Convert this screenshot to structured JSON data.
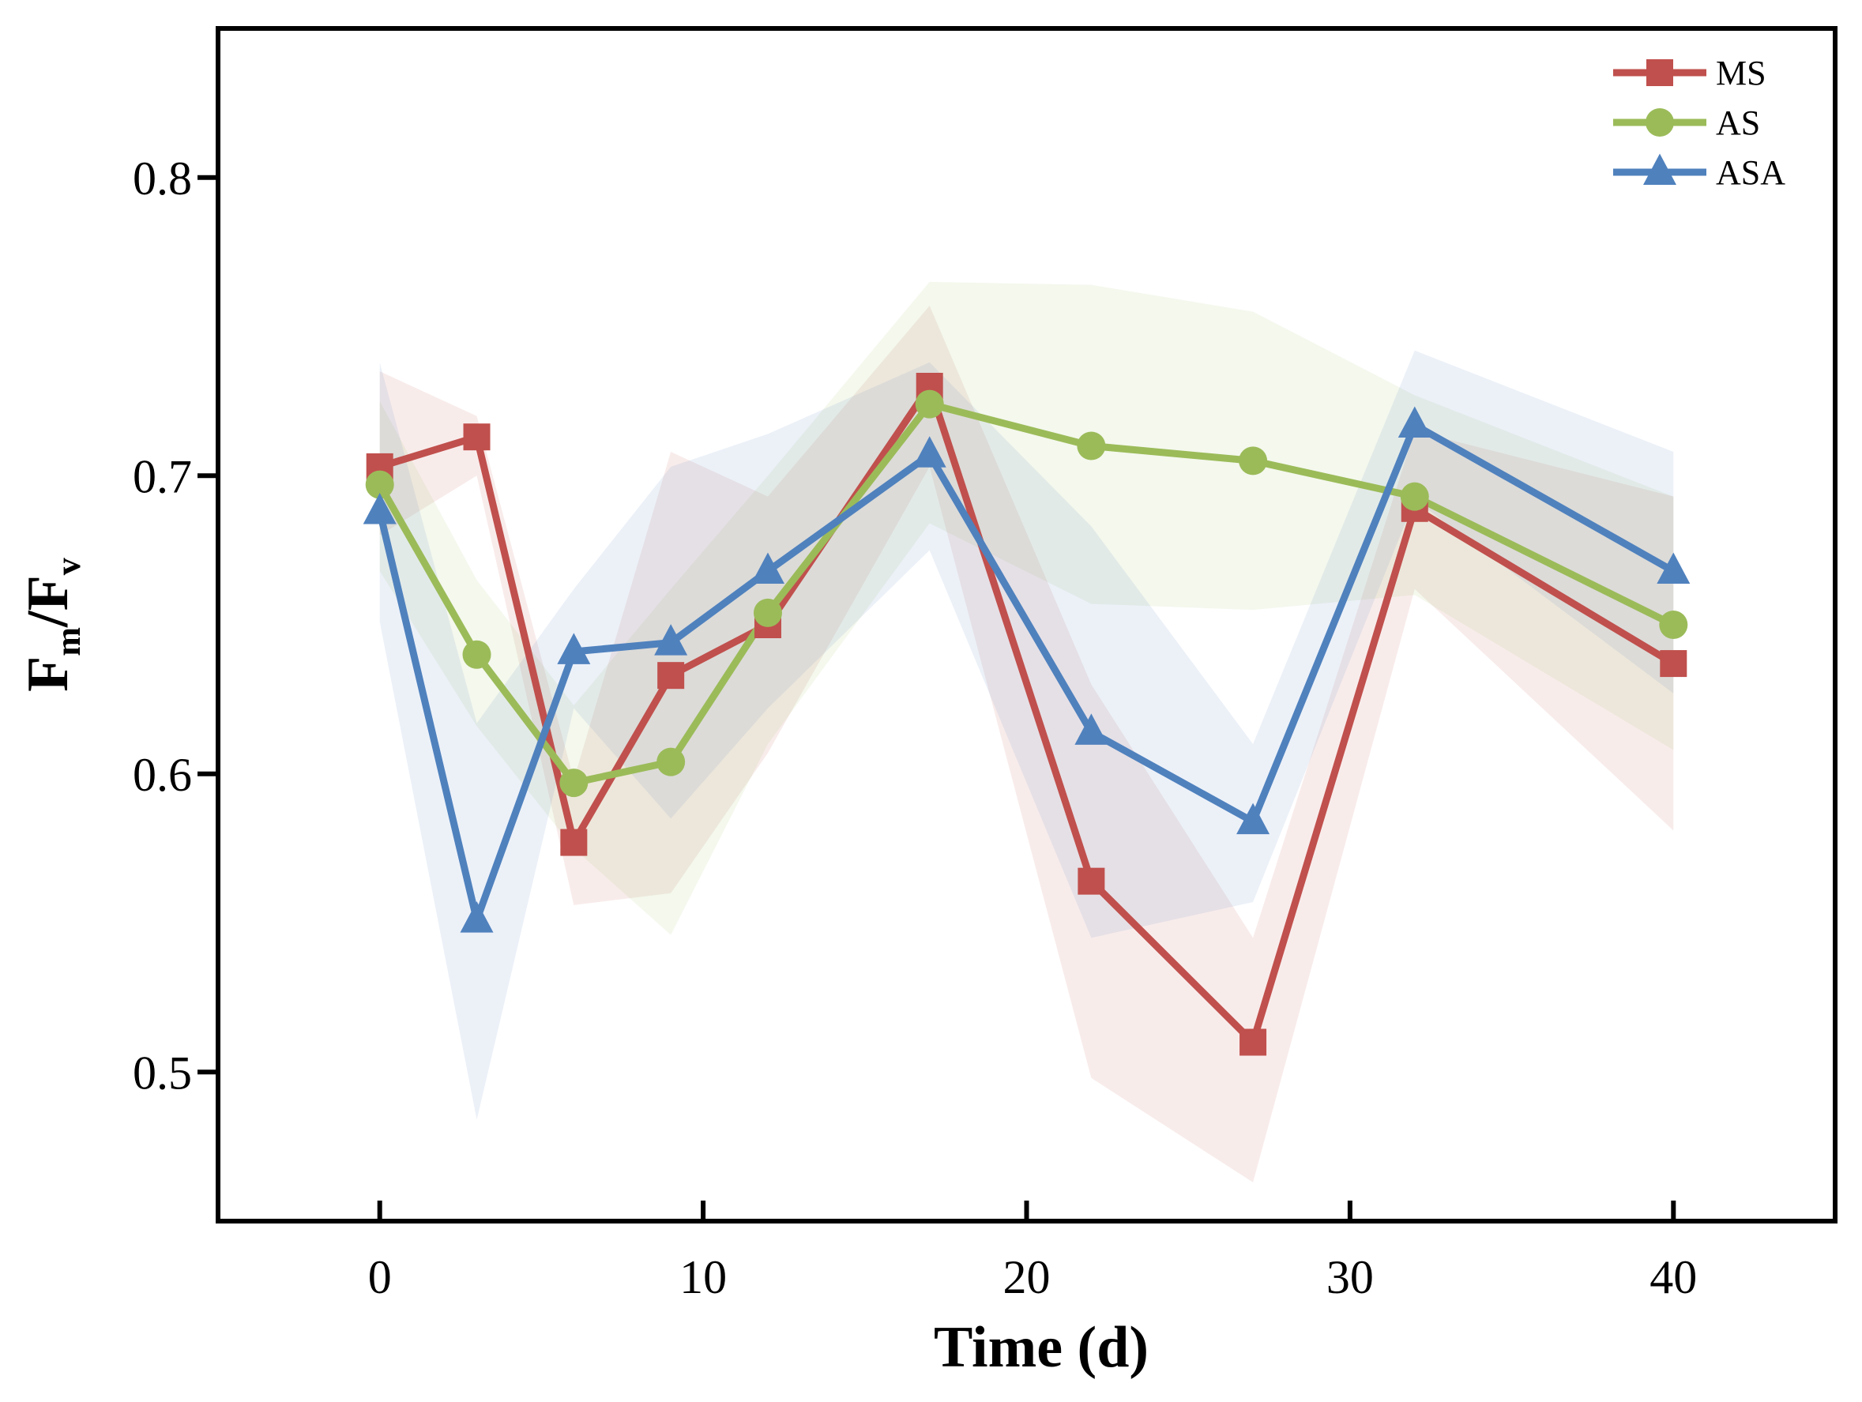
{
  "chart_data": {
    "type": "line",
    "title": "",
    "xlabel": "Time (d)",
    "ylabel": {
      "main": "F",
      "sub1": "m",
      "sep": "/F",
      "sub2": "v"
    },
    "xlim": [
      -5,
      45
    ],
    "ylim": [
      0.45,
      0.85
    ],
    "xticks": [
      0,
      10,
      20,
      30,
      40
    ],
    "xtick_labels": [
      "0",
      "10",
      "20",
      "30",
      "40"
    ],
    "yticks": [
      0.5,
      0.6,
      0.7,
      0.8
    ],
    "ytick_labels": [
      "0.5",
      "0.6",
      "0.7",
      "0.8"
    ],
    "grid": false,
    "legend_position": "top-right",
    "x": [
      0,
      3,
      6,
      9,
      12,
      17,
      22,
      27,
      32,
      40
    ],
    "series": [
      {
        "name": "MS",
        "color": "#c0504d",
        "marker": "square",
        "values": [
          0.703,
          0.713,
          0.577,
          0.633,
          0.65,
          0.73,
          0.564,
          0.51,
          0.689,
          0.637
        ],
        "upper": [
          0.735,
          0.72,
          0.598,
          0.708,
          0.693,
          0.757,
          0.63,
          0.545,
          0.715,
          0.693
        ],
        "lower": [
          0.68,
          0.7,
          0.556,
          0.56,
          0.607,
          0.703,
          0.498,
          0.463,
          0.662,
          0.581
        ]
      },
      {
        "name": "AS",
        "color": "#9bbb59",
        "marker": "circle",
        "values": [
          0.697,
          0.64,
          0.597,
          0.604,
          0.654,
          0.724,
          0.71,
          0.705,
          0.693,
          0.65
        ],
        "upper": [
          0.725,
          0.665,
          0.623,
          0.662,
          0.7,
          0.765,
          0.764,
          0.755,
          0.727,
          0.693
        ],
        "lower": [
          0.668,
          0.616,
          0.575,
          0.546,
          0.61,
          0.684,
          0.657,
          0.655,
          0.66,
          0.608
        ]
      },
      {
        "name": "ASA",
        "color": "#4f81bd",
        "marker": "triangle",
        "values": [
          0.688,
          0.551,
          0.641,
          0.644,
          0.668,
          0.707,
          0.614,
          0.584,
          0.717,
          0.668
        ],
        "upper": [
          0.738,
          0.617,
          0.662,
          0.703,
          0.714,
          0.738,
          0.683,
          0.61,
          0.742,
          0.708
        ],
        "lower": [
          0.651,
          0.484,
          0.622,
          0.585,
          0.622,
          0.675,
          0.545,
          0.557,
          0.692,
          0.627
        ]
      }
    ]
  }
}
